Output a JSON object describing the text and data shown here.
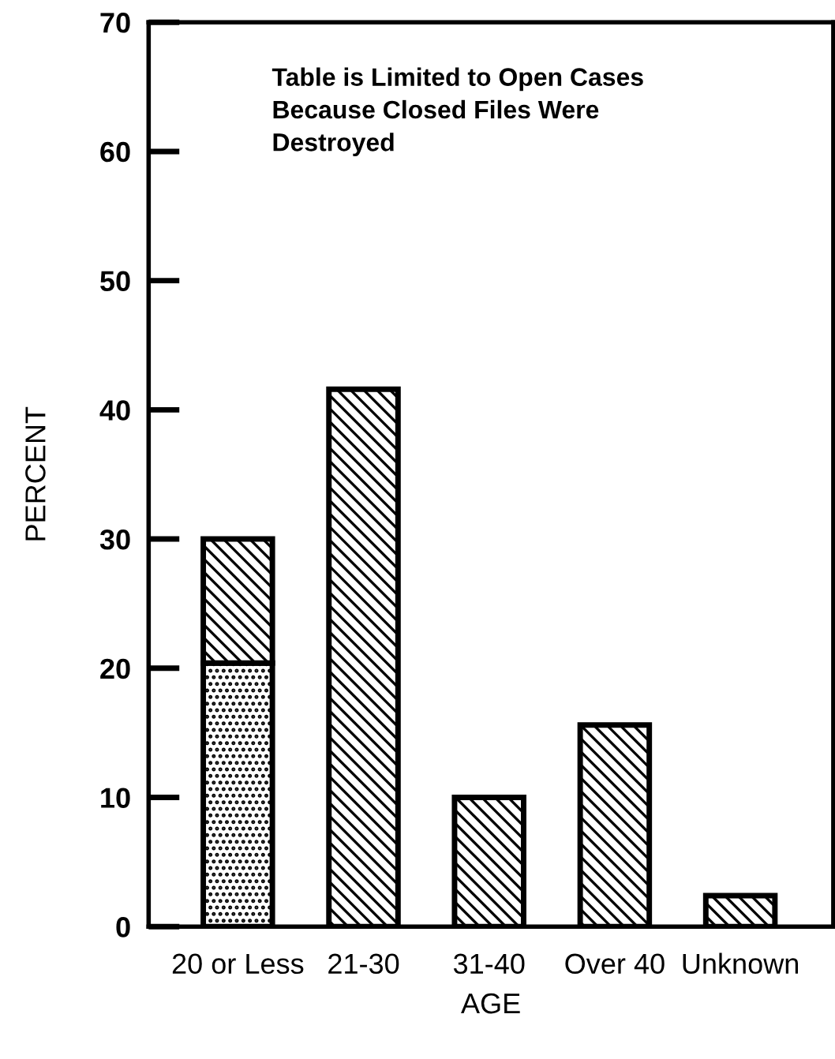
{
  "chart_data": {
    "type": "bar",
    "stacked": true,
    "xlabel": "AGE",
    "ylabel": "PERCENT",
    "categories": [
      "20 or Less",
      "21-30",
      "31-40",
      "Over 40",
      "Unknown"
    ],
    "series": [
      {
        "color": "#000000",
        "values": [
          20.4,
          0,
          0,
          0,
          0
        ]
      },
      {
        "color": "#000000",
        "values": [
          9.6,
          41.6,
          10,
          15.6,
          2.4
        ]
      }
    ],
    "ylim": [
      0,
      70
    ],
    "yticks": [
      0,
      10,
      20,
      30,
      40,
      50,
      60,
      70
    ],
    "grid": false,
    "legend": false,
    "annotations": [
      "Table is Limited to Open Cases\nBecause Closed Files Were\nDestroyed"
    ]
  }
}
